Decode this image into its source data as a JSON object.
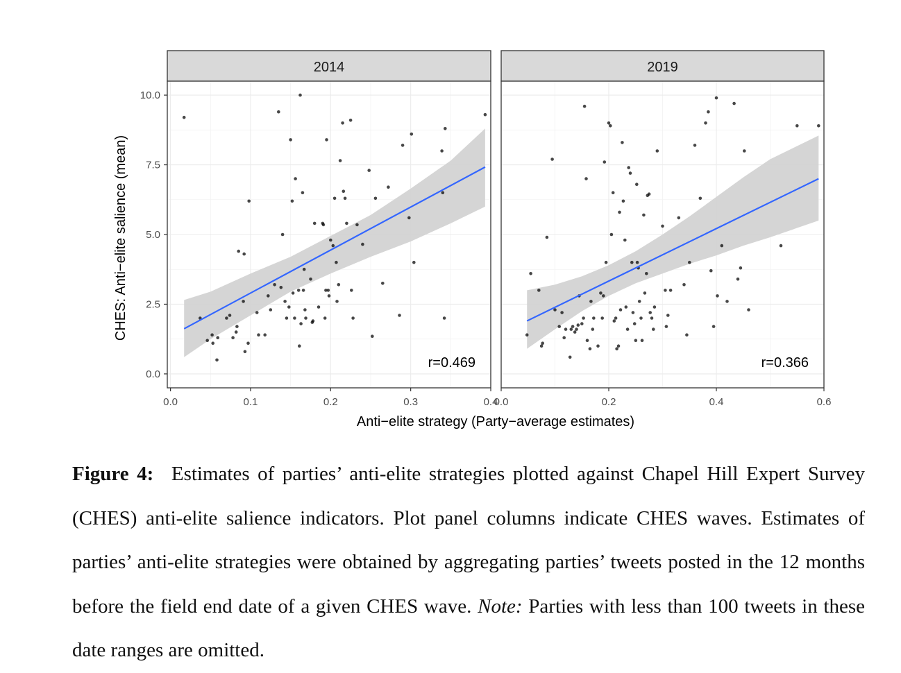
{
  "figure": {
    "y_axis_title": "CHES: Anti−elite salience (mean)",
    "x_axis_title": "Anti−elite strategy (Party−average estimates)",
    "y_ticks": [
      "0.0",
      "2.5",
      "5.0",
      "7.5",
      "10.0"
    ]
  },
  "caption": {
    "label": "Figure 4:",
    "text_main": "Estimates of parties’ anti-elite strategies plotted against Chapel Hill Expert Survey (CHES) anti-elite salience indicators. Plot panel columns indicate CHES waves. Estimates of parties’ anti-elite strategies were obtained by aggregating parties’ tweets posted in the 12 months before the field end date of a given CHES wave.",
    "note_label": "Note:",
    "note_text": "Parties with less than 100 tweets in these date ranges are omitted."
  },
  "colors": {
    "fit_line": "#3366ff",
    "confidence_band": "#d3d3d3",
    "points": "#000000",
    "strip_fill": "#d9d9d9"
  },
  "chart_data": [
    {
      "type": "scatter",
      "title": "2014",
      "annotation": "r=0.469",
      "xlim": [
        -0.004,
        0.4
      ],
      "ylim": [
        -0.5,
        10.5
      ],
      "x_ticks": [
        0.0,
        0.1,
        0.2,
        0.3,
        0.4
      ],
      "x_tick_labels": [
        "0.0",
        "0.1",
        "0.2",
        "0.3",
        "0.4"
      ],
      "y_ticks": [
        0.0,
        2.5,
        5.0,
        7.5,
        10.0
      ],
      "fit_line": {
        "x": [
          0.017,
          0.393
        ],
        "y": [
          1.62,
          7.42
        ]
      },
      "confidence_band": {
        "x": [
          0.017,
          0.05,
          0.1,
          0.15,
          0.2,
          0.25,
          0.3,
          0.35,
          0.393
        ],
        "lower": [
          0.6,
          1.25,
          2.1,
          2.95,
          3.6,
          4.2,
          4.75,
          5.4,
          6.0
        ],
        "upper": [
          2.65,
          2.95,
          3.6,
          4.2,
          4.95,
          5.7,
          6.65,
          7.65,
          8.8
        ]
      },
      "points": [
        [
          0.017,
          9.2
        ],
        [
          0.037,
          2.0
        ],
        [
          0.046,
          1.2
        ],
        [
          0.052,
          1.4
        ],
        [
          0.053,
          1.1
        ],
        [
          0.058,
          0.5
        ],
        [
          0.059,
          1.3
        ],
        [
          0.07,
          2.0
        ],
        [
          0.074,
          2.1
        ],
        [
          0.078,
          1.3
        ],
        [
          0.082,
          1.5
        ],
        [
          0.083,
          1.7
        ],
        [
          0.085,
          4.4
        ],
        [
          0.091,
          2.6
        ],
        [
          0.092,
          4.3
        ],
        [
          0.093,
          0.8
        ],
        [
          0.097,
          1.1
        ],
        [
          0.098,
          6.2
        ],
        [
          0.108,
          2.2
        ],
        [
          0.11,
          1.4
        ],
        [
          0.118,
          1.4
        ],
        [
          0.122,
          2.8
        ],
        [
          0.125,
          2.3
        ],
        [
          0.13,
          3.2
        ],
        [
          0.135,
          9.4
        ],
        [
          0.138,
          3.1
        ],
        [
          0.14,
          5.0
        ],
        [
          0.143,
          2.6
        ],
        [
          0.145,
          2.0
        ],
        [
          0.148,
          2.4
        ],
        [
          0.15,
          8.4
        ],
        [
          0.152,
          6.2
        ],
        [
          0.153,
          2.9
        ],
        [
          0.155,
          2.0
        ],
        [
          0.156,
          7.0
        ],
        [
          0.16,
          3.0
        ],
        [
          0.161,
          1.0
        ],
        [
          0.162,
          10.0
        ],
        [
          0.163,
          1.8
        ],
        [
          0.165,
          6.5
        ],
        [
          0.166,
          3.0
        ],
        [
          0.167,
          3.75
        ],
        [
          0.168,
          2.3
        ],
        [
          0.169,
          2.0
        ],
        [
          0.175,
          3.4
        ],
        [
          0.177,
          1.85
        ],
        [
          0.178,
          1.9
        ],
        [
          0.18,
          5.4
        ],
        [
          0.185,
          2.4
        ],
        [
          0.19,
          5.4
        ],
        [
          0.191,
          5.35
        ],
        [
          0.193,
          2.0
        ],
        [
          0.194,
          3.0
        ],
        [
          0.195,
          8.4
        ],
        [
          0.197,
          3.0
        ],
        [
          0.198,
          2.8
        ],
        [
          0.2,
          4.8
        ],
        [
          0.203,
          4.6
        ],
        [
          0.205,
          6.3
        ],
        [
          0.207,
          4.0
        ],
        [
          0.208,
          2.6
        ],
        [
          0.21,
          3.2
        ],
        [
          0.212,
          7.65
        ],
        [
          0.215,
          9.0
        ],
        [
          0.216,
          6.55
        ],
        [
          0.218,
          6.3
        ],
        [
          0.22,
          5.4
        ],
        [
          0.225,
          9.1
        ],
        [
          0.226,
          3.0
        ],
        [
          0.228,
          2.0
        ],
        [
          0.233,
          5.35
        ],
        [
          0.24,
          4.65
        ],
        [
          0.248,
          7.3
        ],
        [
          0.252,
          1.35
        ],
        [
          0.256,
          6.3
        ],
        [
          0.265,
          3.25
        ],
        [
          0.272,
          6.7
        ],
        [
          0.286,
          2.1
        ],
        [
          0.29,
          8.2
        ],
        [
          0.298,
          5.6
        ],
        [
          0.301,
          8.6
        ],
        [
          0.304,
          4.0
        ],
        [
          0.339,
          8.0
        ],
        [
          0.34,
          6.5
        ],
        [
          0.342,
          2.0
        ],
        [
          0.343,
          8.8
        ],
        [
          0.393,
          9.3
        ]
      ]
    },
    {
      "type": "scatter",
      "title": "2019",
      "annotation": "r=0.366",
      "xlim": [
        0.0,
        0.6
      ],
      "ylim": [
        -0.5,
        10.5
      ],
      "x_ticks": [
        0.0,
        0.2,
        0.4,
        0.6
      ],
      "x_tick_labels": [
        "0.0",
        "0.2",
        "0.4",
        "0.6"
      ],
      "y_ticks": [
        0.0,
        2.5,
        5.0,
        7.5,
        10.0
      ],
      "fit_line": {
        "x": [
          0.048,
          0.59
        ],
        "y": [
          1.9,
          7.0
        ]
      },
      "confidence_band": {
        "x": [
          0.048,
          0.1,
          0.15,
          0.2,
          0.25,
          0.3,
          0.35,
          0.4,
          0.45,
          0.5,
          0.59
        ],
        "lower": [
          0.9,
          1.6,
          2.25,
          2.8,
          3.25,
          3.6,
          3.95,
          4.25,
          4.6,
          4.9,
          5.5
        ],
        "upper": [
          3.0,
          3.2,
          3.5,
          3.9,
          4.4,
          5.0,
          5.65,
          6.35,
          7.05,
          7.7,
          8.55
        ]
      },
      "points": [
        [
          0.048,
          1.4
        ],
        [
          0.055,
          3.6
        ],
        [
          0.07,
          3.0
        ],
        [
          0.075,
          1.0
        ],
        [
          0.077,
          1.1
        ],
        [
          0.085,
          4.9
        ],
        [
          0.095,
          7.7
        ],
        [
          0.1,
          2.3
        ],
        [
          0.108,
          1.7
        ],
        [
          0.113,
          2.2
        ],
        [
          0.117,
          1.3
        ],
        [
          0.12,
          1.6
        ],
        [
          0.128,
          0.6
        ],
        [
          0.13,
          1.6
        ],
        [
          0.133,
          1.7
        ],
        [
          0.137,
          1.5
        ],
        [
          0.14,
          1.6
        ],
        [
          0.143,
          1.75
        ],
        [
          0.145,
          2.8
        ],
        [
          0.15,
          1.8
        ],
        [
          0.153,
          2.0
        ],
        [
          0.155,
          9.6
        ],
        [
          0.158,
          7.0
        ],
        [
          0.16,
          1.2
        ],
        [
          0.165,
          0.9
        ],
        [
          0.167,
          2.6
        ],
        [
          0.17,
          1.6
        ],
        [
          0.172,
          2.0
        ],
        [
          0.18,
          1.0
        ],
        [
          0.185,
          2.9
        ],
        [
          0.188,
          2.0
        ],
        [
          0.19,
          2.8
        ],
        [
          0.192,
          7.6
        ],
        [
          0.195,
          4.0
        ],
        [
          0.2,
          9.0
        ],
        [
          0.203,
          8.9
        ],
        [
          0.205,
          5.0
        ],
        [
          0.208,
          6.5
        ],
        [
          0.21,
          1.9
        ],
        [
          0.213,
          2.0
        ],
        [
          0.215,
          0.9
        ],
        [
          0.218,
          1.0
        ],
        [
          0.22,
          5.8
        ],
        [
          0.222,
          2.3
        ],
        [
          0.225,
          8.3
        ],
        [
          0.227,
          6.2
        ],
        [
          0.23,
          4.8
        ],
        [
          0.232,
          2.4
        ],
        [
          0.235,
          1.6
        ],
        [
          0.237,
          7.4
        ],
        [
          0.24,
          7.2
        ],
        [
          0.243,
          4.0
        ],
        [
          0.245,
          2.2
        ],
        [
          0.248,
          1.8
        ],
        [
          0.25,
          1.2
        ],
        [
          0.252,
          6.8
        ],
        [
          0.253,
          4.0
        ],
        [
          0.255,
          3.8
        ],
        [
          0.257,
          2.6
        ],
        [
          0.26,
          2.0
        ],
        [
          0.262,
          1.2
        ],
        [
          0.265,
          5.7
        ],
        [
          0.267,
          2.9
        ],
        [
          0.27,
          3.6
        ],
        [
          0.272,
          6.4
        ],
        [
          0.275,
          6.45
        ],
        [
          0.277,
          2.2
        ],
        [
          0.28,
          2.0
        ],
        [
          0.283,
          1.6
        ],
        [
          0.285,
          2.4
        ],
        [
          0.29,
          8.0
        ],
        [
          0.3,
          5.3
        ],
        [
          0.305,
          3.0
        ],
        [
          0.307,
          1.7
        ],
        [
          0.31,
          2.1
        ],
        [
          0.315,
          3.0
        ],
        [
          0.33,
          5.6
        ],
        [
          0.34,
          3.2
        ],
        [
          0.345,
          1.4
        ],
        [
          0.35,
          4.0
        ],
        [
          0.36,
          8.2
        ],
        [
          0.37,
          6.3
        ],
        [
          0.38,
          9.0
        ],
        [
          0.385,
          9.4
        ],
        [
          0.39,
          3.7
        ],
        [
          0.395,
          1.7
        ],
        [
          0.4,
          9.9
        ],
        [
          0.402,
          2.8
        ],
        [
          0.41,
          4.6
        ],
        [
          0.42,
          2.6
        ],
        [
          0.433,
          9.7
        ],
        [
          0.44,
          3.4
        ],
        [
          0.445,
          3.8
        ],
        [
          0.452,
          8.0
        ],
        [
          0.46,
          2.3
        ],
        [
          0.52,
          4.6
        ],
        [
          0.55,
          8.9
        ],
        [
          0.59,
          8.9
        ]
      ]
    }
  ]
}
